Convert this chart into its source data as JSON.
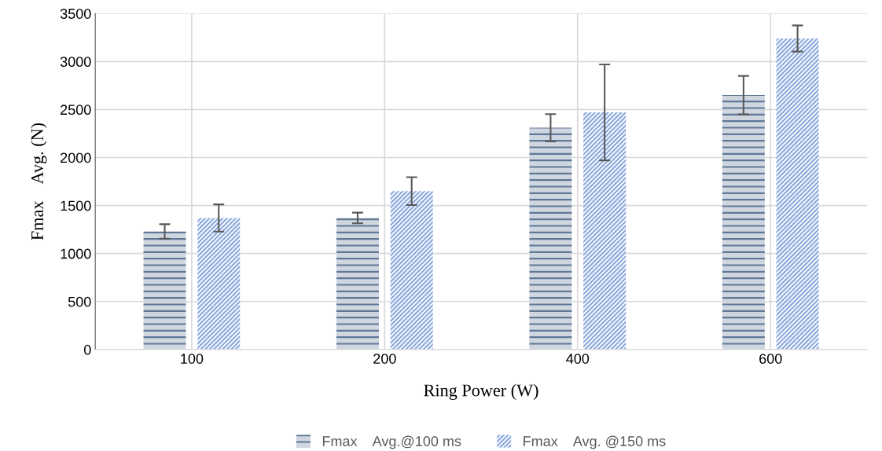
{
  "chart_data": {
    "type": "bar",
    "xlabel": "Ring Power (W)",
    "ylabel": "Fmax    Avg. (N)",
    "categories": [
      "100",
      "200",
      "400",
      "600"
    ],
    "series": [
      {
        "name": "Fmax    Avg.@100 ms",
        "color": "#5f7896",
        "values": [
          1230,
          1370,
          2310,
          2650
        ],
        "errors": [
          75,
          56,
          142,
          200
        ]
      },
      {
        "name": "Fmax    Avg. @150 ms",
        "color": "#8eaadf",
        "values": [
          1370,
          1650,
          2470,
          3240
        ],
        "errors": [
          142,
          145,
          500,
          136
        ]
      }
    ],
    "ylim": [
      0,
      3500
    ],
    "yticks": [
      0,
      500,
      1000,
      1500,
      2000,
      2500,
      3000,
      3500
    ],
    "grid": true,
    "legend": "bottom"
  }
}
